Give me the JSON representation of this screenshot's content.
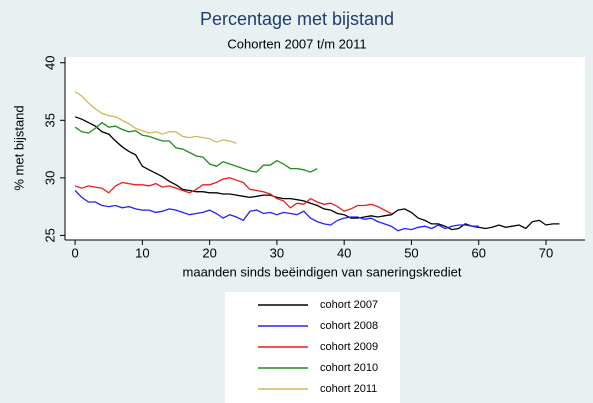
{
  "chart_data": {
    "type": "line",
    "title": "Percentage met bijstand",
    "subtitle": "Cohorten 2007 t/m 2011",
    "x_label": "maanden sinds beëindigen van saneringskrediet",
    "y_label": "% met bijstand",
    "xlim": [
      -1.5,
      75.8
    ],
    "ylim": [
      24.6,
      40.5
    ],
    "xticks": [
      0,
      10,
      20,
      30,
      40,
      50,
      60,
      70
    ],
    "yticks": [
      25,
      30,
      35,
      40
    ],
    "x": [
      0,
      1,
      2,
      3,
      4,
      5,
      6,
      7,
      8,
      9,
      10,
      11,
      12,
      13,
      14,
      15,
      16,
      17,
      18,
      19,
      20,
      21,
      22,
      23,
      24,
      25,
      26,
      27,
      28,
      29,
      30,
      31,
      32,
      33,
      34,
      35,
      36,
      37,
      38,
      39,
      40,
      41,
      42,
      43,
      44,
      45,
      46,
      47,
      48,
      49,
      50,
      51,
      52,
      53,
      54,
      55,
      56,
      57,
      58,
      59,
      60,
      61,
      62,
      63,
      64,
      65,
      66,
      67,
      68,
      69,
      70,
      71,
      72
    ],
    "series": [
      {
        "name": "cohort 2007",
        "color": "#000000",
        "values": [
          35.3,
          35.1,
          34.8,
          34.5,
          34.0,
          33.8,
          33.2,
          32.7,
          32.3,
          32.0,
          31.0,
          30.7,
          30.4,
          30.1,
          29.7,
          29.4,
          29.0,
          28.9,
          28.8,
          28.8,
          28.7,
          28.7,
          28.6,
          28.6,
          28.5,
          28.4,
          28.3,
          28.4,
          28.5,
          28.5,
          28.3,
          28.2,
          28.2,
          28.1,
          28.0,
          27.8,
          27.6,
          27.3,
          27.2,
          26.9,
          26.8,
          26.5,
          26.5,
          26.6,
          26.7,
          26.6,
          26.7,
          26.8,
          27.2,
          27.3,
          27.0,
          26.5,
          26.3,
          26.0,
          26.0,
          25.8,
          25.5,
          25.6,
          26.0,
          25.8,
          25.7,
          25.6,
          25.7,
          25.9,
          25.7,
          25.8,
          25.9,
          25.6,
          26.2,
          26.3,
          25.9,
          26.0,
          26.0
        ]
      },
      {
        "name": "cohort 2008",
        "color": "#2222ff",
        "values": [
          28.9,
          28.3,
          27.9,
          27.9,
          27.6,
          27.5,
          27.6,
          27.4,
          27.5,
          27.3,
          27.2,
          27.2,
          27.0,
          27.1,
          27.3,
          27.2,
          27.0,
          26.8,
          26.9,
          27.0,
          27.2,
          26.9,
          26.5,
          26.8,
          26.6,
          26.3,
          27.1,
          27.2,
          26.9,
          27.0,
          26.8,
          27.0,
          26.9,
          26.8,
          27.1,
          26.5,
          26.2,
          26.0,
          25.9,
          26.3,
          26.5,
          26.6,
          26.6,
          26.4,
          26.5,
          26.2,
          26.0,
          25.8,
          25.4,
          25.6,
          25.5,
          25.7,
          25.8,
          25.6,
          25.9,
          25.6,
          25.8,
          25.9,
          25.9,
          25.8,
          25.8,
          null,
          null,
          null,
          null,
          null,
          null,
          null,
          null,
          null,
          null,
          null,
          null
        ]
      },
      {
        "name": "cohort 2009",
        "color": "#ee1c1c",
        "values": [
          29.3,
          29.1,
          29.3,
          29.2,
          29.1,
          28.7,
          29.3,
          29.6,
          29.5,
          29.4,
          29.4,
          29.3,
          29.5,
          29.2,
          29.3,
          29.1,
          28.9,
          28.7,
          29.0,
          29.4,
          29.4,
          29.6,
          29.9,
          30.0,
          29.8,
          29.6,
          29.0,
          28.9,
          28.8,
          28.6,
          28.2,
          28.0,
          27.4,
          27.8,
          27.7,
          28.2,
          27.9,
          27.7,
          27.8,
          27.5,
          27.1,
          27.3,
          27.6,
          27.6,
          27.7,
          27.5,
          27.2,
          26.9,
          null,
          null,
          null,
          null,
          null,
          null,
          null,
          null,
          null,
          null,
          null,
          null,
          null,
          null,
          null,
          null,
          null,
          null,
          null,
          null,
          null,
          null,
          null,
          null,
          null
        ]
      },
      {
        "name": "cohort 2010",
        "color": "#1e8c1e",
        "values": [
          34.4,
          34.0,
          33.9,
          34.3,
          34.8,
          34.4,
          34.5,
          34.2,
          34.0,
          34.1,
          33.7,
          33.6,
          33.4,
          33.2,
          33.2,
          32.6,
          32.5,
          32.2,
          31.9,
          31.8,
          31.2,
          31.0,
          31.4,
          31.2,
          31.0,
          30.8,
          30.6,
          30.5,
          31.1,
          31.1,
          31.5,
          31.2,
          30.8,
          30.8,
          30.7,
          30.5,
          30.8,
          null,
          null,
          null,
          null,
          null,
          null,
          null,
          null,
          null,
          null,
          null,
          null,
          null,
          null,
          null,
          null,
          null,
          null,
          null,
          null,
          null,
          null,
          null,
          null,
          null,
          null,
          null,
          null,
          null,
          null,
          null,
          null,
          null,
          null,
          null,
          null
        ]
      },
      {
        "name": "cohort 2011",
        "color": "#d4b65c",
        "values": [
          37.5,
          37.1,
          36.5,
          36.0,
          35.6,
          35.4,
          35.3,
          35.0,
          34.7,
          34.3,
          34.1,
          33.9,
          34.0,
          33.8,
          34.0,
          34.0,
          33.6,
          33.5,
          33.6,
          33.5,
          33.4,
          33.1,
          33.3,
          33.2,
          33.0,
          null,
          null,
          null,
          null,
          null,
          null,
          null,
          null,
          null,
          null,
          null,
          null,
          null,
          null,
          null,
          null,
          null,
          null,
          null,
          null,
          null,
          null,
          null,
          null,
          null,
          null,
          null,
          null,
          null,
          null,
          null,
          null,
          null,
          null,
          null,
          null,
          null,
          null,
          null,
          null,
          null,
          null,
          null,
          null,
          null,
          null,
          null,
          null
        ]
      }
    ]
  }
}
